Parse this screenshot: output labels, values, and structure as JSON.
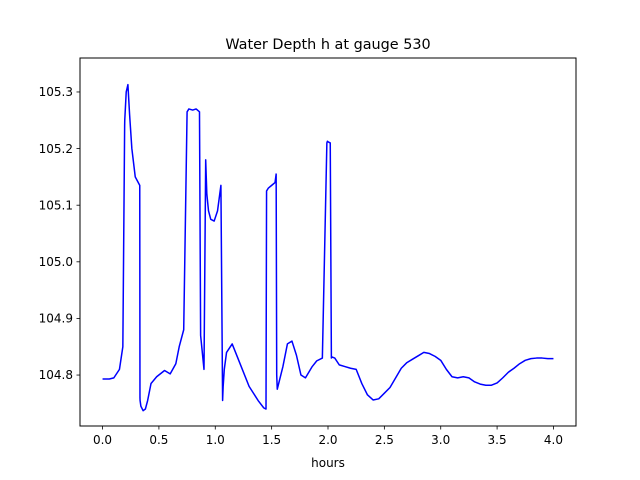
{
  "chart_data": {
    "type": "line",
    "title": "Water Depth h at gauge 530",
    "xlabel": "hours",
    "ylabel": "",
    "xlim": [
      -0.2,
      4.2
    ],
    "ylim": [
      104.71,
      105.36
    ],
    "xticks": [
      0.0,
      0.5,
      1.0,
      1.5,
      2.0,
      2.5,
      3.0,
      3.5,
      4.0
    ],
    "xtick_labels": [
      "0.0",
      "0.5",
      "1.0",
      "1.5",
      "2.0",
      "2.5",
      "3.0",
      "3.5",
      "4.0"
    ],
    "yticks": [
      104.8,
      104.9,
      105.0,
      105.1,
      105.2,
      105.3
    ],
    "ytick_labels": [
      "104.8",
      "104.9",
      "105.0",
      "105.1",
      "105.2",
      "105.3"
    ],
    "grid": false,
    "colors": {
      "line": "#0000ff",
      "axes": "#000000",
      "background": "#ffffff"
    },
    "series": [
      {
        "name": "",
        "x": [
          0.0,
          0.06,
          0.1,
          0.15,
          0.18,
          0.196,
          0.197,
          0.21,
          0.225,
          0.24,
          0.26,
          0.29,
          0.33,
          0.332,
          0.333,
          0.34,
          0.36,
          0.38,
          0.4,
          0.43,
          0.48,
          0.55,
          0.6,
          0.65,
          0.68,
          0.72,
          0.75,
          0.76,
          0.765,
          0.8,
          0.83,
          0.86,
          0.87,
          0.875,
          0.9,
          0.915,
          0.92,
          0.925,
          0.94,
          0.96,
          0.99,
          1.02,
          1.05,
          1.065,
          1.07,
          1.08,
          1.1,
          1.15,
          1.2,
          1.3,
          1.38,
          1.43,
          1.45,
          1.455,
          1.47,
          1.5,
          1.53,
          1.54,
          1.545,
          1.55,
          1.6,
          1.64,
          1.68,
          1.72,
          1.76,
          1.8,
          1.86,
          1.9,
          1.95,
          1.99,
          1.995,
          2.0,
          2.02,
          2.03,
          2.035,
          2.06,
          2.1,
          2.15,
          2.2,
          2.25,
          2.3,
          2.35,
          2.4,
          2.45,
          2.5,
          2.55,
          2.6,
          2.65,
          2.7,
          2.75,
          2.8,
          2.85,
          2.9,
          2.95,
          3.0,
          3.05,
          3.1,
          3.15,
          3.2,
          3.25,
          3.3,
          3.35,
          3.4,
          3.45,
          3.5,
          3.55,
          3.6,
          3.65,
          3.7,
          3.75,
          3.8,
          3.85,
          3.9,
          3.95,
          4.0
        ],
        "values": [
          104.793,
          104.793,
          104.795,
          104.81,
          104.85,
          105.24,
          105.25,
          105.3,
          105.313,
          105.26,
          105.2,
          105.15,
          105.135,
          104.76,
          104.755,
          104.745,
          104.737,
          104.74,
          104.755,
          104.785,
          104.797,
          104.808,
          104.802,
          104.82,
          104.85,
          104.88,
          105.265,
          105.268,
          105.27,
          105.268,
          105.27,
          105.265,
          104.87,
          104.86,
          104.81,
          105.18,
          105.15,
          105.12,
          105.09,
          105.075,
          105.072,
          105.09,
          105.135,
          104.755,
          104.78,
          104.81,
          104.84,
          104.855,
          104.83,
          104.78,
          104.755,
          104.742,
          104.74,
          105.125,
          105.13,
          105.135,
          105.14,
          105.155,
          104.8,
          104.775,
          104.815,
          104.855,
          104.86,
          104.835,
          104.8,
          104.795,
          104.815,
          104.825,
          104.83,
          105.21,
          105.213,
          105.212,
          105.21,
          104.83,
          104.832,
          104.83,
          104.818,
          104.815,
          104.812,
          104.81,
          104.785,
          104.765,
          104.756,
          104.758,
          104.768,
          104.778,
          104.795,
          104.812,
          104.822,
          104.828,
          104.834,
          104.84,
          104.838,
          104.833,
          104.826,
          104.81,
          104.797,
          104.795,
          104.797,
          104.795,
          104.788,
          104.784,
          104.782,
          104.782,
          104.786,
          104.795,
          104.805,
          104.812,
          104.82,
          104.826,
          104.829,
          104.83,
          104.83,
          104.829,
          104.829
        ]
      }
    ]
  }
}
